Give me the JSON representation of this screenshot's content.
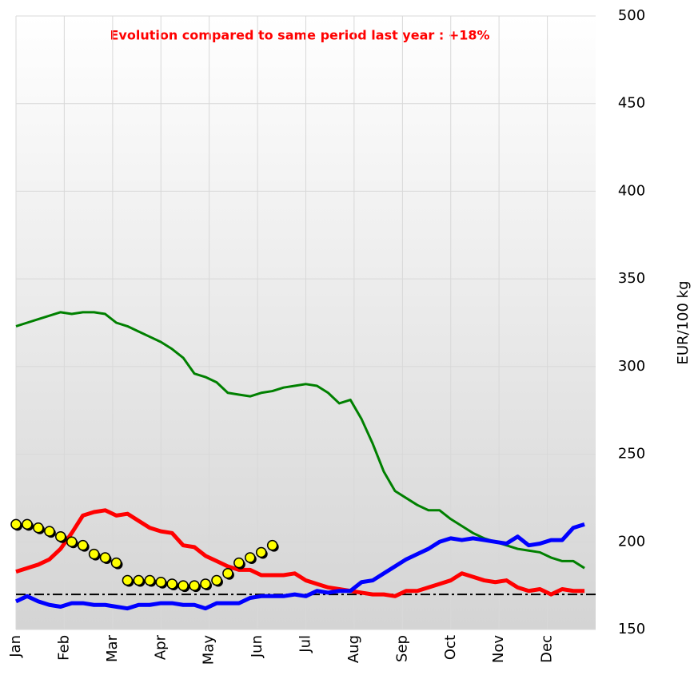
{
  "chart_data": {
    "type": "line",
    "title": "Evolution compared to same period last year : +18%",
    "y_label": "EUR/100 kg",
    "x": [
      0,
      1,
      2,
      3,
      4,
      5,
      6,
      7,
      8,
      9,
      10,
      11,
      12,
      13,
      14,
      15,
      16,
      17,
      18,
      19,
      20,
      21,
      22,
      23,
      24,
      25,
      26,
      27,
      28,
      29,
      30,
      31,
      32,
      33,
      34,
      35,
      36,
      37,
      38,
      39,
      40,
      41,
      42,
      43,
      44,
      45,
      46,
      47,
      48,
      49,
      50,
      51
    ],
    "xlim": [
      0,
      52
    ],
    "xticks": [
      {
        "value": 0,
        "label": "Jan"
      },
      {
        "value": 4.33,
        "label": "Feb"
      },
      {
        "value": 8.67,
        "label": "Mar"
      },
      {
        "value": 13,
        "label": "Apr"
      },
      {
        "value": 17.33,
        "label": "May"
      },
      {
        "value": 21.67,
        "label": "Jun"
      },
      {
        "value": 26,
        "label": "Jul"
      },
      {
        "value": 30.33,
        "label": "Aug"
      },
      {
        "value": 34.67,
        "label": "Sep"
      },
      {
        "value": 39,
        "label": "Oct"
      },
      {
        "value": 43.33,
        "label": "Nov"
      },
      {
        "value": 47.67,
        "label": "Dec"
      }
    ],
    "ylim": [
      150,
      500
    ],
    "yticks": [
      150,
      200,
      250,
      300,
      350,
      400,
      450,
      500
    ],
    "grid": true,
    "series": [
      {
        "color": "#008000",
        "width": 3,
        "values": [
          323,
          325,
          327,
          329,
          331,
          330,
          331,
          331,
          330,
          325,
          323,
          320,
          317,
          314,
          310,
          305,
          296,
          294,
          291,
          285,
          284,
          283,
          285,
          286,
          288,
          289,
          290,
          289,
          285,
          279,
          281,
          270,
          256,
          240,
          229,
          225,
          221,
          218,
          218,
          213,
          209,
          205,
          202,
          200,
          198,
          196,
          195,
          194,
          191,
          189,
          189,
          185
        ]
      },
      {
        "color": "#ff0000",
        "width": 5,
        "values": [
          183,
          185,
          187,
          190,
          196,
          205,
          215,
          217,
          218,
          215,
          216,
          212,
          208,
          206,
          205,
          198,
          197,
          192,
          189,
          186,
          184,
          184,
          181,
          181,
          181,
          182,
          178,
          176,
          174,
          173,
          172,
          171,
          170,
          170,
          169,
          172,
          172,
          174,
          176,
          178,
          182,
          180,
          178,
          177,
          178,
          174,
          172,
          173,
          170,
          173,
          172,
          172
        ]
      },
      {
        "color": "#0000ff",
        "width": 5,
        "values": [
          166,
          169,
          166,
          164,
          163,
          165,
          165,
          164,
          164,
          163,
          162,
          164,
          164,
          165,
          165,
          164,
          164,
          162,
          165,
          165,
          165,
          168,
          169,
          169,
          169,
          170,
          169,
          172,
          171,
          172,
          172,
          177,
          178,
          182,
          186,
          190,
          193,
          196,
          200,
          202,
          201,
          202,
          201,
          200,
          199,
          203,
          198,
          199,
          201,
          201,
          208,
          210
        ]
      },
      {
        "color": "#ffff00",
        "marker": "circle",
        "values": [
          210,
          210,
          208,
          206,
          203,
          200,
          198,
          193,
          191,
          188,
          178,
          178,
          178,
          177,
          176,
          175,
          175,
          176,
          178,
          182,
          188,
          191,
          194,
          198,
          null,
          null,
          null,
          null,
          null,
          null,
          null,
          null,
          null,
          null,
          null,
          null,
          null,
          null,
          null,
          null,
          null,
          null,
          null,
          null,
          null,
          null,
          null,
          null,
          null,
          null,
          null,
          null
        ]
      }
    ],
    "hline": {
      "value": 170,
      "color": "#000000"
    }
  }
}
